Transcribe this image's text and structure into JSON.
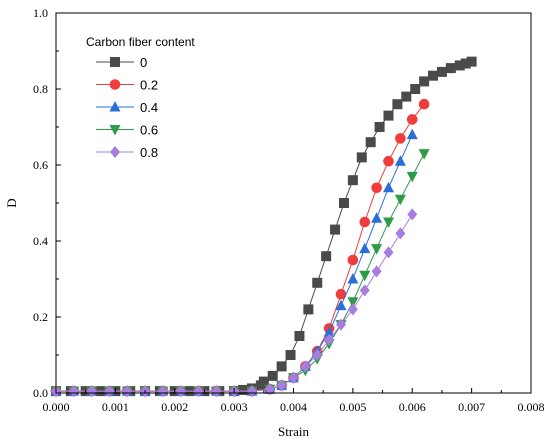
{
  "chart_data": {
    "type": "line",
    "title": "",
    "xlabel": "Strain",
    "ylabel": "D",
    "xlim": [
      0.0,
      0.008
    ],
    "ylim": [
      0.0,
      1.0
    ],
    "x_ticks": [
      "0.000",
      "0.001",
      "0.002",
      "0.003",
      "0.004",
      "0.005",
      "0.006",
      "0.007",
      "0.008"
    ],
    "y_ticks": [
      "0.0",
      "0.2",
      "0.4",
      "0.6",
      "0.8",
      "1.0"
    ],
    "grid": false,
    "legend": {
      "title": "Carbon fiber content",
      "placement": "top-left"
    },
    "series": [
      {
        "name": "0",
        "color": "#4a4a4a",
        "marker": "square",
        "x": [
          0.0,
          0.00025,
          0.0005,
          0.00075,
          0.001,
          0.00125,
          0.0015,
          0.00175,
          0.002,
          0.00225,
          0.0025,
          0.00275,
          0.003,
          0.00315,
          0.0033,
          0.00345,
          0.0035,
          0.00365,
          0.0038,
          0.00395,
          0.0041,
          0.00425,
          0.0044,
          0.00455,
          0.0047,
          0.00485,
          0.005,
          0.00515,
          0.0053,
          0.00545,
          0.0056,
          0.00575,
          0.0059,
          0.00605,
          0.0062,
          0.00635,
          0.0065,
          0.00665,
          0.0068,
          0.0069,
          0.007
        ],
        "y": [
          0.005,
          0.005,
          0.005,
          0.005,
          0.005,
          0.005,
          0.005,
          0.005,
          0.005,
          0.005,
          0.005,
          0.005,
          0.005,
          0.008,
          0.012,
          0.02,
          0.03,
          0.045,
          0.07,
          0.1,
          0.15,
          0.22,
          0.29,
          0.36,
          0.43,
          0.5,
          0.56,
          0.62,
          0.66,
          0.7,
          0.73,
          0.76,
          0.78,
          0.8,
          0.82,
          0.835,
          0.845,
          0.855,
          0.862,
          0.867,
          0.872
        ]
      },
      {
        "name": "0.2",
        "color": "#f03c3c",
        "marker": "circle",
        "x": [
          0.0,
          0.0003,
          0.0006,
          0.0009,
          0.0012,
          0.0015,
          0.0018,
          0.0021,
          0.0024,
          0.0027,
          0.003,
          0.0033,
          0.0036,
          0.0038,
          0.004,
          0.0042,
          0.0044,
          0.0046,
          0.0048,
          0.005,
          0.0052,
          0.0054,
          0.0056,
          0.0058,
          0.006,
          0.0062
        ],
        "y": [
          0.005,
          0.005,
          0.005,
          0.005,
          0.005,
          0.005,
          0.005,
          0.005,
          0.005,
          0.005,
          0.005,
          0.005,
          0.01,
          0.02,
          0.04,
          0.07,
          0.11,
          0.17,
          0.26,
          0.35,
          0.45,
          0.54,
          0.61,
          0.67,
          0.72,
          0.76
        ]
      },
      {
        "name": "0.4",
        "color": "#2a6fd6",
        "marker": "triangle-up",
        "x": [
          0.0,
          0.0003,
          0.0006,
          0.0009,
          0.0012,
          0.0015,
          0.0018,
          0.0021,
          0.0024,
          0.0027,
          0.003,
          0.0033,
          0.0036,
          0.0038,
          0.004,
          0.0042,
          0.0044,
          0.0046,
          0.0048,
          0.005,
          0.0052,
          0.0054,
          0.0056,
          0.0058,
          0.006
        ],
        "y": [
          0.005,
          0.005,
          0.005,
          0.005,
          0.005,
          0.005,
          0.005,
          0.005,
          0.005,
          0.005,
          0.005,
          0.005,
          0.01,
          0.02,
          0.04,
          0.07,
          0.11,
          0.16,
          0.23,
          0.3,
          0.38,
          0.46,
          0.54,
          0.61,
          0.68
        ]
      },
      {
        "name": "0.6",
        "color": "#2f9a4a",
        "marker": "triangle-down",
        "x": [
          0.0,
          0.0003,
          0.0006,
          0.0009,
          0.0012,
          0.0015,
          0.0018,
          0.0021,
          0.0024,
          0.0027,
          0.003,
          0.0033,
          0.0036,
          0.0038,
          0.004,
          0.0042,
          0.0044,
          0.0046,
          0.0048,
          0.005,
          0.0052,
          0.0054,
          0.0056,
          0.0058,
          0.006,
          0.0062
        ],
        "y": [
          0.005,
          0.005,
          0.005,
          0.005,
          0.005,
          0.005,
          0.005,
          0.005,
          0.005,
          0.005,
          0.005,
          0.005,
          0.01,
          0.02,
          0.04,
          0.06,
          0.09,
          0.13,
          0.18,
          0.24,
          0.31,
          0.38,
          0.45,
          0.51,
          0.57,
          0.63
        ]
      },
      {
        "name": "0.8",
        "color": "#a77ee0",
        "marker": "diamond",
        "x": [
          0.0,
          0.0003,
          0.0006,
          0.0009,
          0.0012,
          0.0015,
          0.0018,
          0.0021,
          0.0024,
          0.0027,
          0.003,
          0.0033,
          0.0036,
          0.0038,
          0.004,
          0.0042,
          0.0044,
          0.0046,
          0.0048,
          0.005,
          0.0052,
          0.0054,
          0.0056,
          0.0058,
          0.006
        ],
        "y": [
          0.005,
          0.005,
          0.005,
          0.005,
          0.005,
          0.005,
          0.005,
          0.005,
          0.005,
          0.005,
          0.005,
          0.005,
          0.01,
          0.02,
          0.04,
          0.07,
          0.1,
          0.14,
          0.18,
          0.22,
          0.27,
          0.32,
          0.37,
          0.42,
          0.47
        ]
      }
    ]
  }
}
